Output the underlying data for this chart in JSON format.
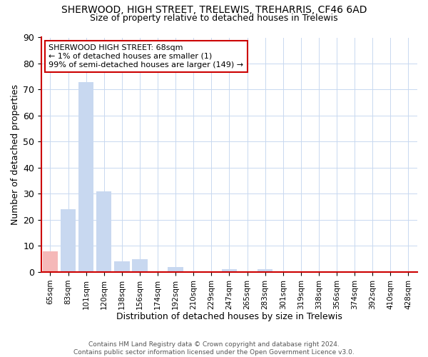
{
  "title": "SHERWOOD, HIGH STREET, TRELEWIS, TREHARRIS, CF46 6AD",
  "subtitle": "Size of property relative to detached houses in Trelewis",
  "xlabel": "Distribution of detached houses by size in Trelewis",
  "ylabel": "Number of detached properties",
  "bar_labels": [
    "65sqm",
    "83sqm",
    "101sqm",
    "120sqm",
    "138sqm",
    "156sqm",
    "174sqm",
    "192sqm",
    "210sqm",
    "229sqm",
    "247sqm",
    "265sqm",
    "283sqm",
    "301sqm",
    "319sqm",
    "338sqm",
    "356sqm",
    "374sqm",
    "392sqm",
    "410sqm",
    "428sqm"
  ],
  "bar_values": [
    8,
    24,
    73,
    31,
    4,
    5,
    0,
    2,
    0,
    0,
    1,
    0,
    1,
    0,
    0,
    0,
    0,
    0,
    0,
    0,
    0
  ],
  "highlight_bar_index": 0,
  "highlight_color": "#cc0000",
  "normal_bar_color": "#c8d8f0",
  "highlight_bar_color": "#f5b8b8",
  "ylim": [
    0,
    90
  ],
  "yticks": [
    0,
    10,
    20,
    30,
    40,
    50,
    60,
    70,
    80,
    90
  ],
  "annotation_title": "SHERWOOD HIGH STREET: 68sqm",
  "annotation_line1": "← 1% of detached houses are smaller (1)",
  "annotation_line2": "99% of semi-detached houses are larger (149) →",
  "annotation_box_color": "#ffffff",
  "annotation_box_edge_color": "#cc0000",
  "footer_line1": "Contains HM Land Registry data © Crown copyright and database right 2024.",
  "footer_line2": "Contains public sector information licensed under the Open Government Licence v3.0.",
  "background_color": "#ffffff",
  "grid_color": "#c8d8f0"
}
